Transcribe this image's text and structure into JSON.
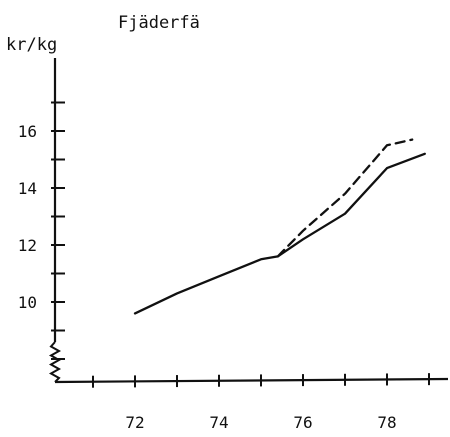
{
  "chart_data": {
    "type": "line",
    "title": "Fjäderfä",
    "ylabel": "kr/kg",
    "xlabel": "",
    "x_ticks": [
      72,
      74,
      76,
      78
    ],
    "y_ticks": [
      10,
      12,
      14,
      16
    ],
    "xlim": [
      70,
      79.2
    ],
    "ylim": [
      7.5,
      17.5
    ],
    "axis_break": true,
    "grid": false,
    "colors": {
      "ink": "#111111"
    },
    "series": [
      {
        "style": "solid",
        "points": [
          [
            72,
            9.6
          ],
          [
            73,
            10.3
          ],
          [
            74,
            10.9
          ],
          [
            75,
            11.5
          ],
          [
            75.4,
            11.6
          ],
          [
            76,
            12.2
          ],
          [
            77,
            13.1
          ],
          [
            78,
            14.7
          ],
          [
            78.9,
            15.2
          ]
        ]
      },
      {
        "style": "dashed",
        "points": [
          [
            75.4,
            11.6
          ],
          [
            76,
            12.5
          ],
          [
            77,
            13.8
          ],
          [
            78,
            15.5
          ],
          [
            78.6,
            15.7
          ]
        ]
      }
    ]
  }
}
